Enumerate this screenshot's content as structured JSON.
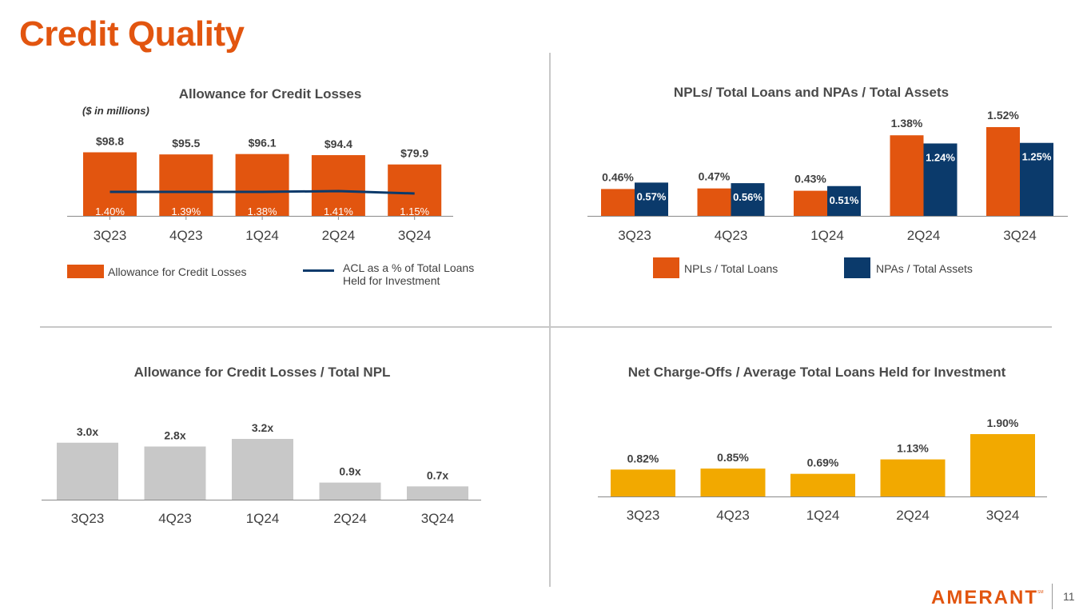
{
  "page": {
    "title": "Credit Quality",
    "page_number": "11"
  },
  "logo": {
    "text": "AMERANT",
    "mark": "SM"
  },
  "colors": {
    "orange": "#e2550f",
    "navy": "#0b3a6b",
    "gray": "#c8c8c8",
    "gold": "#f2a900",
    "text": "#404040"
  },
  "chart_data": [
    {
      "id": "acl",
      "type": "bar",
      "title": "Allowance for Credit Losses",
      "unit_note": "($ in millions)",
      "categories": [
        "3Q23",
        "4Q23",
        "1Q24",
        "2Q24",
        "3Q24"
      ],
      "series": [
        {
          "name": "Allowance for Credit Losses",
          "kind": "bar",
          "values": [
            98.8,
            95.5,
            96.1,
            94.4,
            79.9
          ],
          "labels": [
            "$98.8",
            "$95.5",
            "$96.1",
            "$94.4",
            "$79.9"
          ]
        },
        {
          "name": "ACL as a % of Total Loans Held for Investment",
          "kind": "line",
          "values": [
            1.4,
            1.39,
            1.38,
            1.41,
            1.15
          ],
          "labels": [
            "1.40%",
            "1.39%",
            "1.38%",
            "1.41%",
            "1.15%"
          ]
        }
      ],
      "ylim": [
        0,
        120
      ],
      "legend": [
        "Allowance for Credit Losses",
        "ACL as a % of Total Loans",
        "Held for Investment"
      ]
    },
    {
      "id": "npl",
      "type": "bar",
      "title": "NPLs/ Total Loans and NPAs / Total Assets",
      "categories": [
        "3Q23",
        "4Q23",
        "1Q24",
        "2Q24",
        "3Q24"
      ],
      "series": [
        {
          "name": "NPLs / Total Loans",
          "values": [
            0.46,
            0.47,
            0.43,
            1.38,
            1.52
          ],
          "labels": [
            "0.46%",
            "0.47%",
            "0.43%",
            "1.38%",
            "1.52%"
          ]
        },
        {
          "name": "NPAs / Total Assets",
          "values": [
            0.57,
            0.56,
            0.51,
            1.24,
            1.25
          ],
          "labels": [
            "0.57%",
            "0.56%",
            "0.51%",
            "1.24%",
            "1.25%"
          ]
        }
      ],
      "ylim": [
        0,
        1.6
      ],
      "legend": [
        "NPLs / Total Loans",
        "NPAs / Total Assets"
      ]
    },
    {
      "id": "aclnpl",
      "type": "bar",
      "title": "Allowance for Credit Losses / Total NPL",
      "categories": [
        "3Q23",
        "4Q23",
        "1Q24",
        "2Q24",
        "3Q24"
      ],
      "values": [
        3.0,
        2.8,
        3.2,
        0.9,
        0.7
      ],
      "labels": [
        "3.0x",
        "2.8x",
        "3.2x",
        "0.9x",
        "0.7x"
      ],
      "ylim": [
        0,
        3.5
      ]
    },
    {
      "id": "nco",
      "type": "bar",
      "title": "Net Charge-Offs / Average Total Loans Held for Investment",
      "categories": [
        "3Q23",
        "4Q23",
        "1Q24",
        "2Q24",
        "3Q24"
      ],
      "values": [
        0.82,
        0.85,
        0.69,
        1.13,
        1.9
      ],
      "labels": [
        "0.82%",
        "0.85%",
        "0.69%",
        "1.13%",
        "1.90%"
      ],
      "ylim": [
        0,
        2.1
      ]
    }
  ]
}
